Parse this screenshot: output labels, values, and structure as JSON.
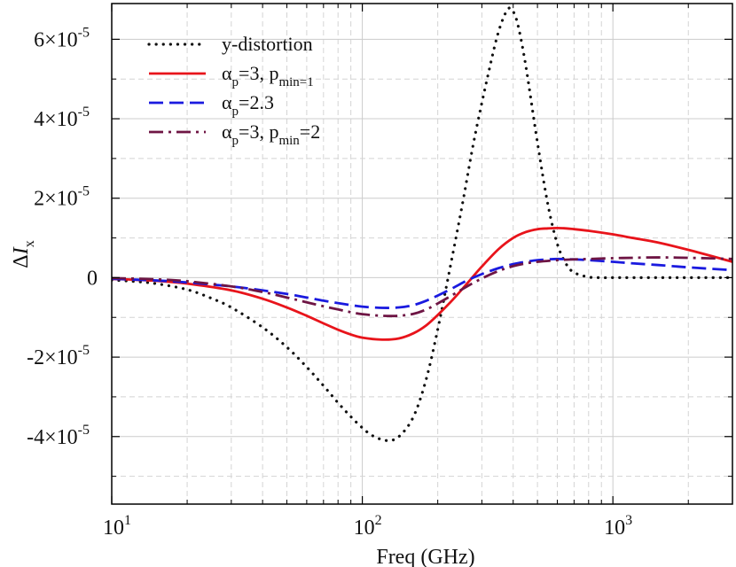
{
  "chart_data": {
    "type": "line",
    "title": "",
    "xlabel": "Freq (GHz)",
    "ylabel": "ΔI",
    "ylabel_sub": "x",
    "xscale": "log",
    "xlim": [
      10,
      3000
    ],
    "ylim": [
      -5.7e-05,
      6.9e-05
    ],
    "x_ticks": [
      {
        "value": 10,
        "base": "10",
        "exp": "1"
      },
      {
        "value": 100,
        "base": "10",
        "exp": "2"
      },
      {
        "value": 1000,
        "base": "10",
        "exp": "3"
      }
    ],
    "y_ticks": [
      {
        "value": 6e-05,
        "mant": "6×10",
        "exp": "-5"
      },
      {
        "value": 4e-05,
        "mant": "4×10",
        "exp": "-5"
      },
      {
        "value": 2e-05,
        "mant": "2×10",
        "exp": "-5"
      },
      {
        "value": 0,
        "mant": "0",
        "exp": ""
      },
      {
        "value": -2e-05,
        "mant": "-2×10",
        "exp": "-5"
      },
      {
        "value": -4e-05,
        "mant": "-4×10",
        "exp": "-5"
      }
    ],
    "grid": true,
    "legend_position": "top-left",
    "series": [
      {
        "name": "y-distortion",
        "legend": {
          "parts": [
            {
              "t": "y-distortion",
              "s": "normal"
            }
          ]
        },
        "color": "#111111",
        "dash": "dotted",
        "x": [
          10,
          12,
          15,
          20,
          25,
          30,
          40,
          50,
          60,
          70,
          80,
          90,
          100,
          110,
          125,
          140,
          160,
          180,
          200,
          220,
          250,
          280,
          320,
          350,
          380,
          400,
          420,
          450,
          500,
          550,
          600,
          650,
          700,
          800,
          900,
          1000,
          1200,
          1500,
          2000,
          3000
        ],
        "y": [
          -6e-07,
          -9e-07,
          -1.5e-06,
          -3e-06,
          -5.2e-06,
          -7.5e-06,
          -1.25e-05,
          -1.75e-05,
          -2.25e-05,
          -2.72e-05,
          -3.15e-05,
          -3.5e-05,
          -3.78e-05,
          -3.98e-05,
          -4.1e-05,
          -4e-05,
          -3.5e-05,
          -2.55e-05,
          -1.3e-05,
          0.0,
          1.8e-05,
          3.5e-05,
          5.2e-05,
          6.2e-05,
          6.75e-05,
          6.7e-05,
          6.3e-05,
          5.3e-05,
          3.4e-05,
          1.85e-05,
          8.5e-06,
          3.5e-06,
          1.3e-06,
          1.5e-07,
          0,
          0,
          0,
          0,
          0,
          0
        ]
      },
      {
        "name": "αp=3, pmin=1",
        "legend": {
          "parts": [
            {
              "t": "α",
              "s": "normal"
            },
            {
              "t": "p",
              "s": "sub"
            },
            {
              "t": "=3, p",
              "s": "normal"
            },
            {
              "t": "min=1",
              "s": "sub"
            }
          ]
        },
        "color": "#e8141b",
        "dash": "solid",
        "x": [
          10,
          15,
          20,
          30,
          40,
          50,
          60,
          70,
          80,
          90,
          100,
          120,
          140,
          160,
          180,
          200,
          230,
          260,
          300,
          350,
          400,
          450,
          500,
          550,
          600,
          650,
          700,
          800,
          1000,
          1200,
          1500,
          2000,
          3000
        ],
        "y": [
          -3e-07,
          -8e-07,
          -1.5e-06,
          -3.2e-06,
          -5.3e-06,
          -7.5e-06,
          -9.6e-06,
          -1.15e-05,
          -1.31e-05,
          -1.43e-05,
          -1.51e-05,
          -1.56e-05,
          -1.53e-05,
          -1.4e-05,
          -1.2e-05,
          -9.4e-06,
          -5.5e-06,
          -1.7e-06,
          2.8e-06,
          7.2e-06,
          1e-05,
          1.15e-05,
          1.22e-05,
          1.24e-05,
          1.25e-05,
          1.24e-05,
          1.22e-05,
          1.18e-05,
          1.09e-05,
          1e-05,
          8.9e-06,
          7e-06,
          4e-06
        ]
      },
      {
        "name": "αp=2.3",
        "legend": {
          "parts": [
            {
              "t": "α",
              "s": "normal"
            },
            {
              "t": "p",
              "s": "sub"
            },
            {
              "t": "=2.3",
              "s": "normal"
            }
          ]
        },
        "color": "#1a1adf",
        "dash": "dashed",
        "x": [
          10,
          15,
          20,
          30,
          40,
          50,
          60,
          70,
          80,
          90,
          100,
          120,
          140,
          160,
          180,
          200,
          230,
          260,
          300,
          350,
          400,
          450,
          500,
          550,
          600,
          700,
          800,
          1000,
          1200,
          1500,
          2000,
          3000
        ],
        "y": [
          -3e-07,
          -7e-07,
          -1.2e-06,
          -2.2e-06,
          -3.2e-06,
          -4.1e-06,
          -5e-06,
          -5.8e-06,
          -6.4e-06,
          -6.9e-06,
          -7.3e-06,
          -7.6e-06,
          -7.5e-06,
          -6.9e-06,
          -5.8e-06,
          -4.5e-06,
          -2.6e-06,
          -8e-07,
          9e-07,
          2.4e-06,
          3.4e-06,
          4e-06,
          4.4e-06,
          4.6e-06,
          4.7e-06,
          4.6e-06,
          4.4e-06,
          4e-06,
          3.6e-06,
          3.2e-06,
          2.6e-06,
          1.9e-06
        ]
      },
      {
        "name": "αp=3, pmin=2",
        "legend": {
          "parts": [
            {
              "t": "α",
              "s": "normal"
            },
            {
              "t": "p",
              "s": "sub"
            },
            {
              "t": "=3, p",
              "s": "normal"
            },
            {
              "t": "min",
              "s": "sub"
            },
            {
              "t": "=2",
              "s": "normal"
            }
          ]
        },
        "color": "#6e1544",
        "dash": "dashdot",
        "x": [
          10,
          15,
          20,
          30,
          40,
          50,
          60,
          70,
          80,
          90,
          100,
          120,
          140,
          160,
          180,
          200,
          230,
          260,
          300,
          350,
          400,
          450,
          500,
          600,
          700,
          800,
          1000,
          1200,
          1500,
          2000,
          3000
        ],
        "y": [
          -1e-07,
          -4e-07,
          -9e-07,
          -2.2e-06,
          -3.6e-06,
          -5e-06,
          -6.2e-06,
          -7.2e-06,
          -8e-06,
          -8.7e-06,
          -9.2e-06,
          -9.6e-06,
          -9.6e-06,
          -9.1e-06,
          -8e-06,
          -6.5e-06,
          -4.3e-06,
          -2.3e-06,
          -2e-07,
          1.7e-06,
          2.9e-06,
          3.6e-06,
          4e-06,
          4.4e-06,
          4.6e-06,
          4.7e-06,
          4.9e-06,
          5e-06,
          5.1e-06,
          5e-06,
          4.7e-06
        ]
      }
    ]
  }
}
